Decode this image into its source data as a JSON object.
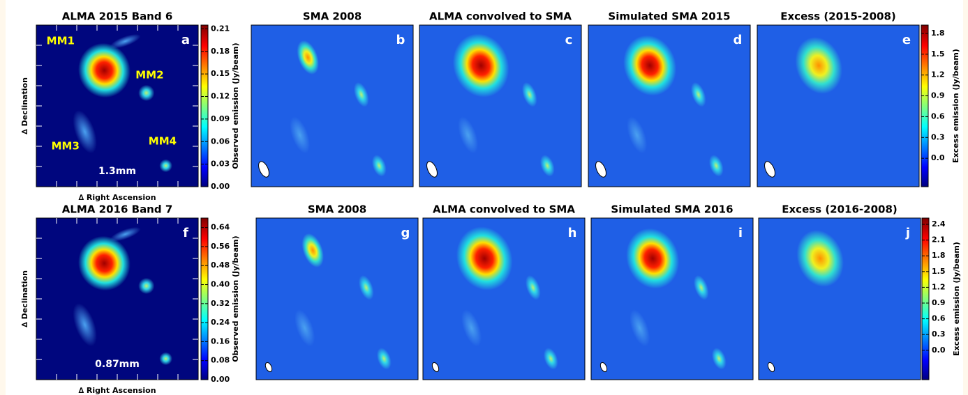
{
  "panels": [
    {
      "title": "ALMA 2015 Band 6",
      "letter": "a",
      "x_label": "∆ Right Ascension",
      "y_label": "∆ Declination",
      "wavelength": "1.3mm",
      "sources": [
        "MM1",
        "MM2",
        "MM3",
        "MM4"
      ]
    },
    {
      "title": "SMA 2008",
      "letter": "b"
    },
    {
      "title": "ALMA convolved to SMA",
      "letter": "c"
    },
    {
      "title": "Simulated SMA 2015",
      "letter": "d"
    },
    {
      "title": "Excess (2015-2008)",
      "letter": "e"
    },
    {
      "title": "ALMA 2016 Band 7",
      "letter": "f",
      "x_label": "∆ Right Ascension",
      "y_label": "∆ Declination",
      "wavelength": "0.87mm"
    },
    {
      "title": "SMA 2008",
      "letter": "g"
    },
    {
      "title": "ALMA convolved to SMA",
      "letter": "h"
    },
    {
      "title": "Simulated SMA 2016",
      "letter": "i"
    },
    {
      "title": "Excess (2016-2008)",
      "letter": "j"
    }
  ],
  "colorbars": [
    {
      "label": "Observed emission (Jy/beam)",
      "lim": [
        0,
        0.215
      ],
      "ticks": [
        {
          "value": 0,
          "label": "0.00"
        },
        0.03,
        0.06,
        0.09,
        0.12,
        0.15,
        0.18,
        0.21
      ]
    },
    {
      "label": "Excess emission (Jy/beam)",
      "lim": [
        -0.41,
        1.92
      ],
      "ticks": [
        {
          "value": 0,
          "label": "0.0"
        },
        0.3,
        0.6,
        0.9,
        1.2,
        1.5,
        1.8
      ]
    },
    {
      "label": "Observed emission (Jy/beam)",
      "lim": [
        0,
        0.68
      ],
      "ticks": [
        {
          "value": 0,
          "label": "0.00"
        },
        0.08,
        0.16,
        0.24,
        0.32,
        {
          "value": 0.4,
          "label": "0.40"
        },
        0.48,
        0.56,
        0.64
      ]
    },
    {
      "label": "Excess emission (Jy/beam)",
      "lim": [
        -0.56,
        2.52
      ],
      "ticks": [
        {
          "value": 0,
          "label": "0.0"
        },
        0.3,
        0.6,
        0.9,
        1.2,
        1.5,
        1.8,
        2.1,
        2.4
      ]
    }
  ]
}
